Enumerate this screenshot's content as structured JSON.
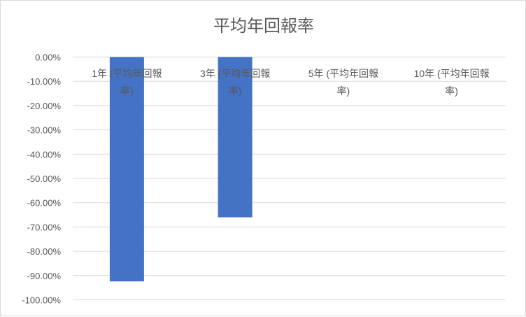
{
  "chart_data": {
    "type": "bar",
    "title": "平均年回報率",
    "categories": [
      "1年 (平均年回報率)",
      "3年 (平均年回報率)",
      "5年 (平均年回報率)",
      "10年 (平均年回報率)"
    ],
    "category_lines": [
      [
        "1年 (平均年回報",
        "率)"
      ],
      [
        "3年 (平均年回報",
        "率)"
      ],
      [
        "5年 (平均年回報",
        "率)"
      ],
      [
        "10年 (平均年回報",
        "率)"
      ]
    ],
    "values": [
      -92.4,
      -66.0,
      null,
      null
    ],
    "ylim": [
      -100,
      0
    ],
    "yticks": [
      0,
      -10,
      -20,
      -30,
      -40,
      -50,
      -60,
      -70,
      -80,
      -90,
      -100
    ],
    "ytick_labels": [
      "0.00%",
      "-10.00%",
      "-20.00%",
      "-30.00%",
      "-40.00%",
      "-50.00%",
      "-60.00%",
      "-70.00%",
      "-80.00%",
      "-90.00%",
      "-100.00%"
    ],
    "grid": true,
    "bar_color": "#4472C4",
    "xlabel": "",
    "ylabel": ""
  }
}
